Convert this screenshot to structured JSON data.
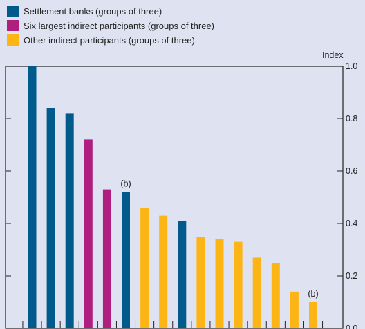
{
  "chart_data": {
    "type": "bar",
    "unit_label": "Index",
    "ylim": [
      0,
      1.0
    ],
    "yticks": [
      "0.0",
      "0.2",
      "0.4",
      "0.6",
      "0.8",
      "1.0"
    ],
    "y_axis_side": "right",
    "grid": false,
    "legend_position": "top-left",
    "series_legend": [
      {
        "name": "Settlement banks (groups of three)",
        "color": "#005a8c"
      },
      {
        "name": "Six largest indirect participants (groups of three)",
        "color": "#b01e80"
      },
      {
        "name": "Other indirect participants (groups of three)",
        "color": "#fdb515"
      }
    ],
    "bars": [
      {
        "value": 1.0,
        "series": 0,
        "label": ""
      },
      {
        "value": 0.84,
        "series": 0,
        "label": ""
      },
      {
        "value": 0.82,
        "series": 0,
        "label": ""
      },
      {
        "value": 0.72,
        "series": 1,
        "label": ""
      },
      {
        "value": 0.53,
        "series": 1,
        "label": ""
      },
      {
        "value": 0.52,
        "series": 0,
        "label": "(b)"
      },
      {
        "value": 0.46,
        "series": 2,
        "label": ""
      },
      {
        "value": 0.43,
        "series": 2,
        "label": ""
      },
      {
        "value": 0.41,
        "series": 0,
        "label": ""
      },
      {
        "value": 0.35,
        "series": 2,
        "label": ""
      },
      {
        "value": 0.34,
        "series": 2,
        "label": ""
      },
      {
        "value": 0.33,
        "series": 2,
        "label": ""
      },
      {
        "value": 0.27,
        "series": 2,
        "label": ""
      },
      {
        "value": 0.25,
        "series": 2,
        "label": ""
      },
      {
        "value": 0.14,
        "series": 2,
        "label": ""
      },
      {
        "value": 0.1,
        "series": 2,
        "label": "(b)"
      }
    ]
  }
}
